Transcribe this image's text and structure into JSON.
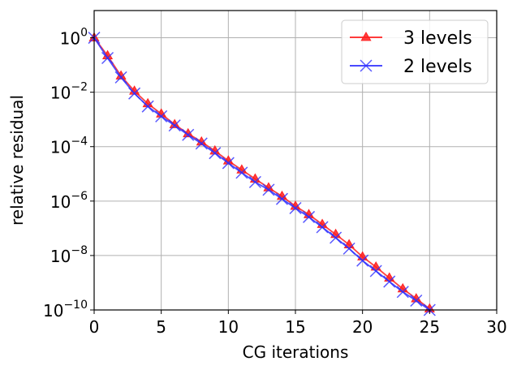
{
  "chart_data": {
    "type": "line",
    "xlabel": "CG iterations",
    "ylabel": "relative residual",
    "xlim": [
      0,
      30
    ],
    "ylim": [
      1e-10,
      10
    ],
    "yscale": "log",
    "grid": true,
    "legend_position": "top-right",
    "x_ticks": [
      0,
      5,
      10,
      15,
      20,
      25,
      30
    ],
    "y_ticks": [
      {
        "base": "10",
        "exp": "0",
        "value": 1
      },
      {
        "base": "10",
        "exp": "−2",
        "value": 0.01
      },
      {
        "base": "10",
        "exp": "−4",
        "value": 0.0001
      },
      {
        "base": "10",
        "exp": "−6",
        "value": 1e-06
      },
      {
        "base": "10",
        "exp": "−8",
        "value": 1e-08
      },
      {
        "base": "10",
        "exp": "−10",
        "value": 1e-10
      }
    ],
    "series": [
      {
        "name": "3 levels",
        "color": "#ff2020",
        "marker": "triangle",
        "x": [
          0,
          1,
          2,
          3,
          4,
          5,
          6,
          7,
          8,
          9,
          10,
          11,
          12,
          13,
          14,
          15,
          16,
          17,
          18,
          19,
          20,
          21,
          22,
          23,
          24,
          25
        ],
        "y": [
          1,
          0.22,
          0.04,
          0.011,
          0.0038,
          0.0016,
          0.00065,
          0.0003,
          0.00015,
          7e-05,
          3e-05,
          1.4e-05,
          6.5e-06,
          3.1e-06,
          1.5e-06,
          6.5e-07,
          3.2e-07,
          1.4e-07,
          6e-08,
          2.5e-08,
          9e-09,
          3.8e-09,
          1.5e-09,
          6e-10,
          2.6e-10,
          1.1e-10
        ]
      },
      {
        "name": "2 levels",
        "color": "#3030ff",
        "marker": "x",
        "x": [
          0,
          1,
          2,
          3,
          4,
          5,
          6,
          7,
          8,
          9,
          10,
          11,
          12,
          13,
          14,
          15,
          16,
          17,
          18,
          19,
          20,
          21,
          22,
          23,
          24,
          25
        ],
        "y": [
          1,
          0.18,
          0.035,
          0.009,
          0.003,
          0.0013,
          0.0006,
          0.00027,
          0.00013,
          5.8e-05,
          2.5e-05,
          1.1e-05,
          5e-06,
          2.6e-06,
          1.2e-06,
          5.5e-07,
          2.6e-07,
          1.1e-07,
          4.5e-08,
          1.8e-08,
          6.5e-09,
          2.7e-09,
          1.1e-09,
          4.6e-10,
          2.2e-10,
          1e-10
        ]
      }
    ]
  }
}
